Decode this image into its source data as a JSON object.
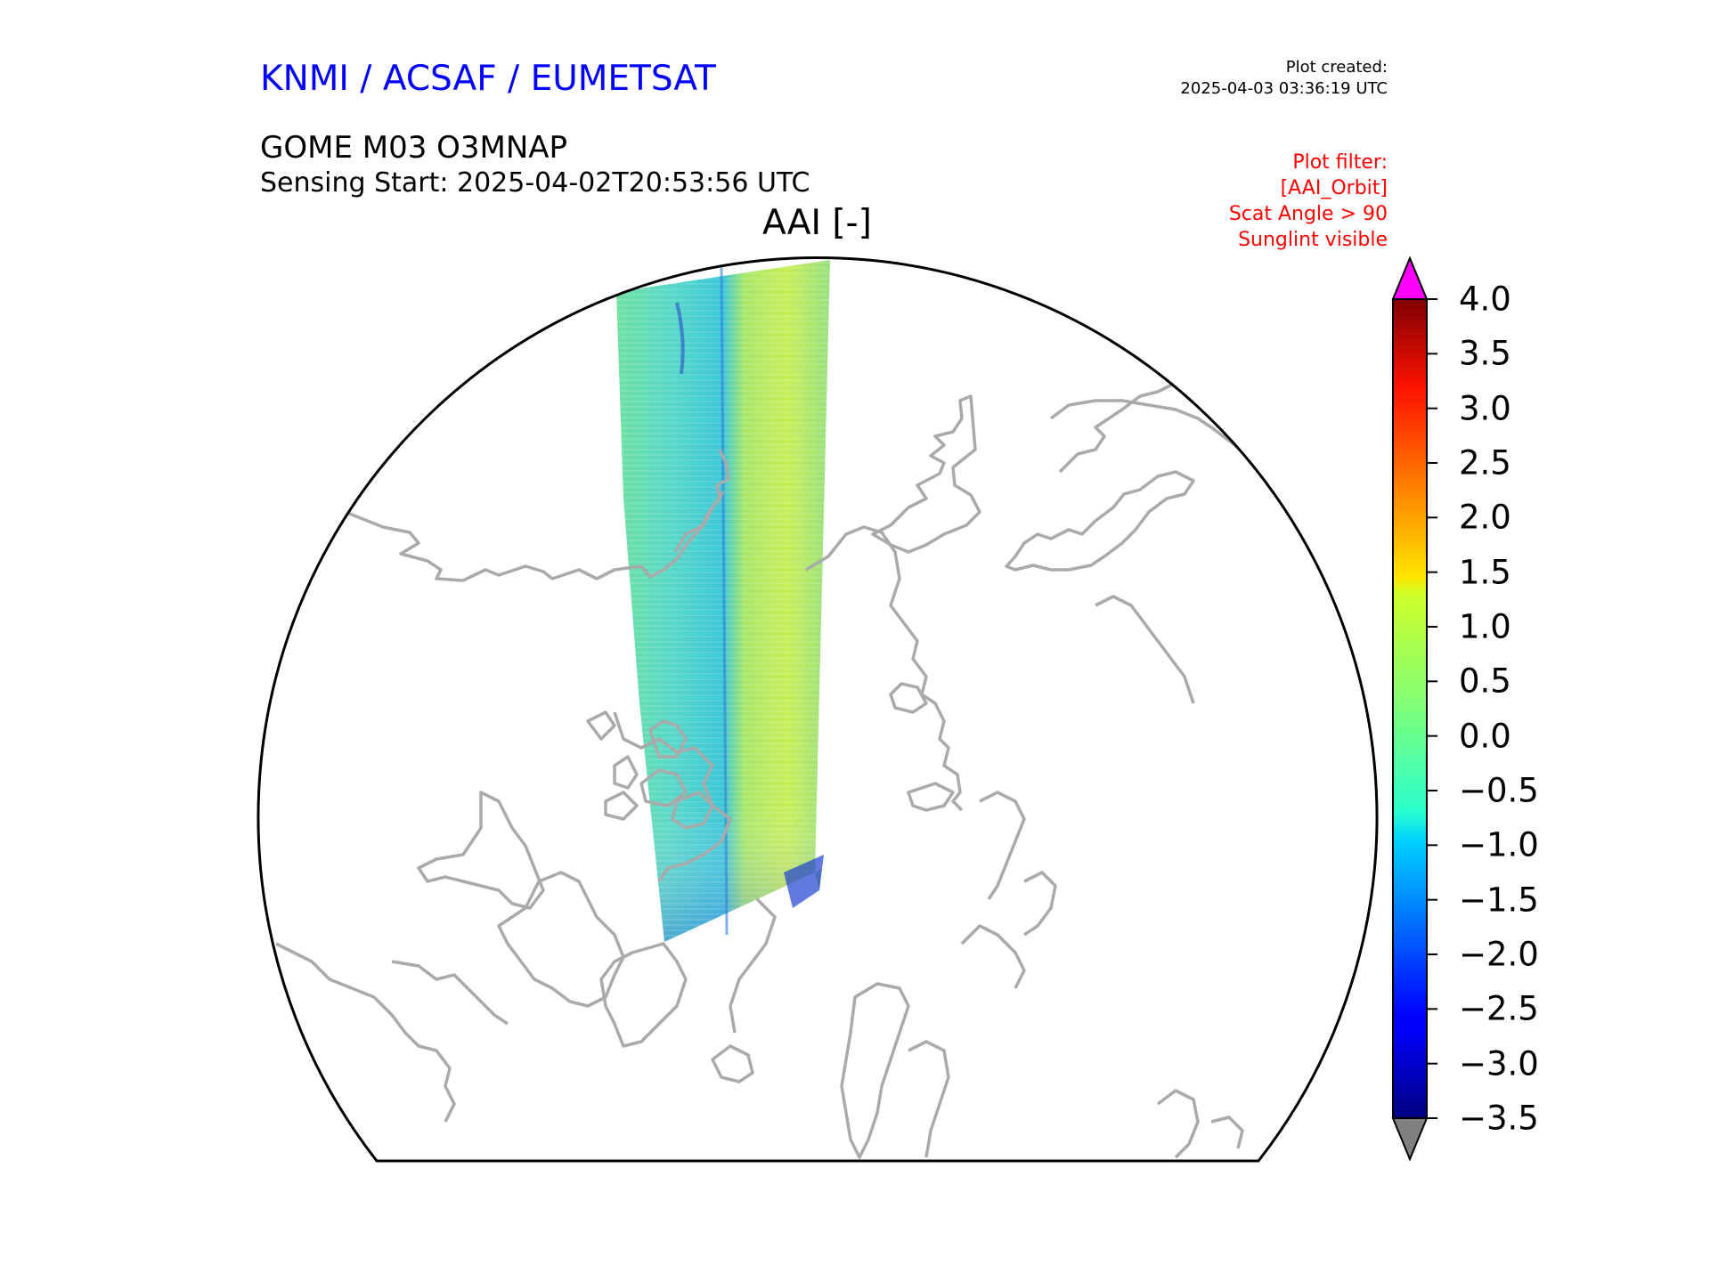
{
  "header": {
    "org": "KNMI / ACSAF / EUMETSAT",
    "plot_created_label": "Plot created:",
    "plot_created_time": "2025-04-03 03:36:19 UTC",
    "product": "GOME M03 O3MNAP",
    "sensing_start": "Sensing Start: 2025-04-02T20:53:56 UTC",
    "variable": "AAI [-]"
  },
  "filters": [
    "Plot filter:",
    "[AAI_Orbit]",
    "Scat Angle > 90",
    "Sunglint visible"
  ],
  "colorbar": {
    "min": -3.5,
    "max": 4.0,
    "ticks": [
      "4.0",
      "3.5",
      "3.0",
      "2.5",
      "2.0",
      "1.5",
      "1.0",
      "0.5",
      "0.0",
      "−0.5",
      "−1.0",
      "−1.5",
      "−2.0",
      "−2.5",
      "−3.0",
      "−3.5"
    ],
    "extend_max_color": "#ff00ff",
    "extend_min_color": "#808080",
    "colormap": "jet"
  },
  "colors": {
    "coastline": "#aaaaaa",
    "title_blue": "#0000ff",
    "filter_red": "#ff0000"
  }
}
